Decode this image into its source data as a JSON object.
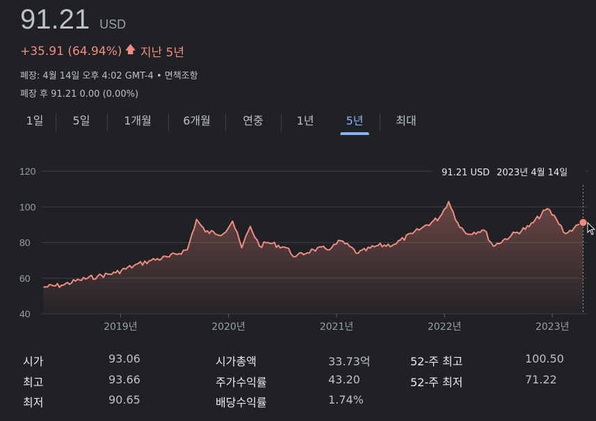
{
  "quote": {
    "price": "91.21",
    "currency": "USD",
    "change": "+35.91 (64.94%)",
    "period": "지난 5년",
    "market_status": "폐장: 4월 14일 오후 4:02 GMT-4 • 면책조항",
    "after_hours": "폐장 후 91.21 0.00 (0.00%)"
  },
  "tabs": [
    "1일",
    "5일",
    "1개월",
    "6개월",
    "연중",
    "1년",
    "5년",
    "최대"
  ],
  "active_tab": "5년",
  "tooltip": {
    "price": "91.21 USD",
    "date": "2023년 4월 14일"
  },
  "colors": {
    "line": "#f28b82",
    "accent": "#8ab4f8",
    "background": "#202124"
  },
  "chart_data": {
    "type": "area",
    "x_ticks": [
      "2019년",
      "2020년",
      "2021년",
      "2022년",
      "2023년"
    ],
    "y_ticks": [
      40,
      60,
      80,
      100,
      120
    ],
    "ylim": [
      40,
      120
    ],
    "xlim": [
      "2018-04-14",
      "2023-04-14"
    ],
    "grid": true,
    "series": [
      {
        "x": [
          "2018-04",
          "2018-06",
          "2018-08",
          "2018-10",
          "2018-12",
          "2019-02",
          "2019-04",
          "2019-06",
          "2019-08",
          "2019-09",
          "2019-10",
          "2019-12",
          "2020-01",
          "2020-02",
          "2020-03",
          "2020-04",
          "2020-05",
          "2020-07",
          "2020-08",
          "2020-10",
          "2020-12",
          "2021-01",
          "2021-03",
          "2021-05",
          "2021-07",
          "2021-09",
          "2021-10",
          "2021-12",
          "2022-01",
          "2022-02",
          "2022-03",
          "2022-05",
          "2022-06",
          "2022-08",
          "2022-10",
          "2022-12",
          "2023-01",
          "2023-02",
          "2023-03",
          "2023-04"
        ],
        "y": [
          55,
          56,
          59,
          61,
          63,
          67,
          70,
          72,
          76,
          93,
          86,
          85,
          92,
          77,
          89,
          78,
          80,
          77,
          72,
          76,
          77,
          81,
          74,
          78,
          79,
          85,
          88,
          94,
          103,
          91,
          85,
          87,
          78,
          84,
          89,
          99,
          93,
          85,
          88,
          91.21
        ]
      }
    ]
  },
  "stats": [
    [
      {
        "label": "시가",
        "value": "93.06"
      },
      {
        "label": "최고",
        "value": "93.66"
      },
      {
        "label": "최저",
        "value": "90.65"
      }
    ],
    [
      {
        "label": "시가총액",
        "value": "33.73억"
      },
      {
        "label": "주가수익률",
        "value": "43.20"
      },
      {
        "label": "배당수익률",
        "value": "1.74%"
      }
    ],
    [
      {
        "label": "52-주 최고",
        "value": "100.50"
      },
      {
        "label": "52-주 최저",
        "value": "71.22"
      }
    ]
  ]
}
